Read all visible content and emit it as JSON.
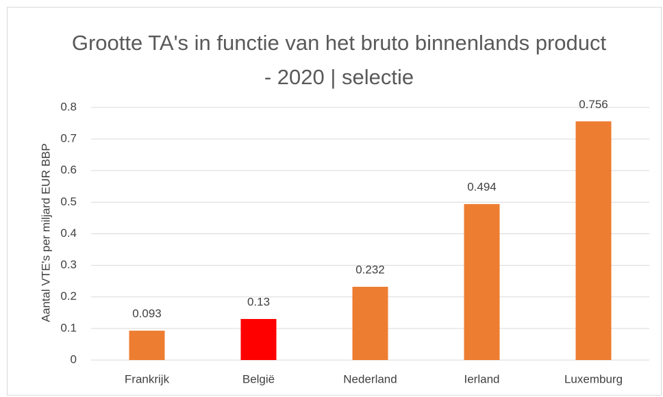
{
  "chart_data": {
    "type": "bar",
    "title": "Grootte TA's in functie van het bruto binnenlands product - 2020 | selectie",
    "y_label": "Aantal VTE's per miljard EUR BBP",
    "categories": [
      "Frankrijk",
      "België",
      "Nederland",
      "Ierland",
      "Luxemburg"
    ],
    "values": [
      0.093,
      0.13,
      0.232,
      0.494,
      0.756
    ],
    "colors": [
      "#ed7d31",
      "#ff0000",
      "#ed7d31",
      "#ed7d31",
      "#ed7d31"
    ],
    "ylim": [
      0,
      0.8
    ],
    "yticks": [
      0,
      0.1,
      0.2,
      0.3,
      0.4,
      0.5,
      0.6,
      0.7,
      0.8
    ],
    "grid": true
  }
}
